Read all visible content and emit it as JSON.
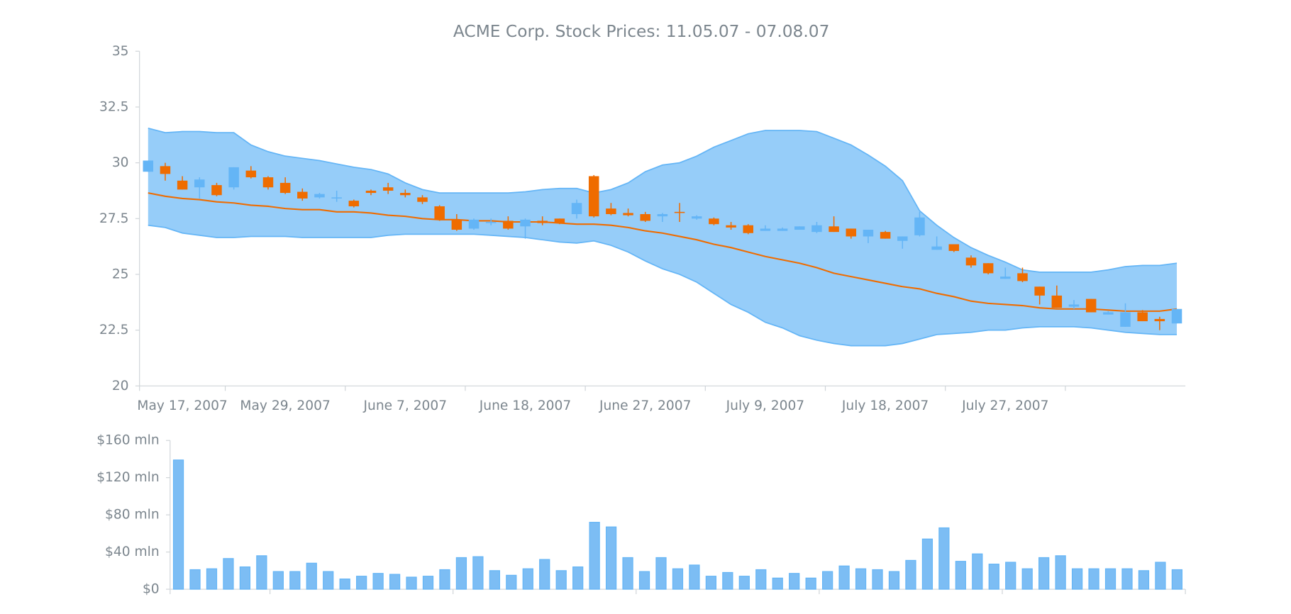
{
  "chart_data": [
    {
      "type": "candlestick",
      "title": "ACME Corp. Stock Prices: 11.05.07 - 07.08.07",
      "open": [
        29.6,
        29.85,
        29.2,
        28.9,
        29.0,
        28.9,
        29.65,
        29.35,
        29.1,
        28.7,
        28.45,
        28.4,
        28.3,
        28.75,
        28.9,
        28.65,
        28.45,
        28.05,
        27.45,
        27.05,
        27.3,
        27.4,
        27.15,
        27.4,
        27.5,
        27.7,
        29.4,
        27.95,
        27.75,
        27.7,
        27.6,
        27.8,
        27.5,
        27.5,
        27.2,
        27.2,
        26.95,
        26.95,
        27.0,
        26.9,
        27.15,
        27.05,
        26.7,
        26.9,
        26.5,
        26.75,
        26.1,
        26.35,
        25.75,
        25.5,
        24.8,
        25.05,
        24.45,
        24.05,
        23.55,
        23.9,
        23.2,
        22.65,
        23.3,
        23.0,
        22.8
      ],
      "high": [
        30.1,
        30.0,
        29.4,
        29.35,
        29.1,
        29.8,
        29.85,
        29.4,
        29.35,
        28.85,
        28.65,
        28.75,
        28.35,
        28.8,
        29.1,
        28.8,
        28.55,
        28.1,
        27.7,
        27.5,
        27.5,
        27.6,
        27.5,
        27.6,
        27.5,
        28.35,
        29.45,
        28.2,
        27.95,
        27.8,
        27.75,
        28.2,
        27.65,
        27.55,
        27.35,
        27.25,
        27.2,
        27.1,
        27.15,
        27.35,
        27.6,
        27.05,
        27.0,
        26.95,
        26.7,
        27.8,
        26.7,
        26.35,
        25.85,
        25.5,
        25.3,
        25.3,
        24.45,
        24.5,
        23.85,
        23.9,
        23.35,
        23.7,
        23.4,
        23.1,
        23.45
      ],
      "low": [
        29.6,
        29.2,
        28.8,
        28.4,
        28.5,
        28.8,
        29.3,
        28.8,
        28.6,
        28.3,
        28.4,
        28.25,
        28.0,
        28.55,
        28.6,
        28.45,
        28.15,
        27.4,
        26.95,
        27.0,
        27.2,
        27.0,
        26.6,
        27.2,
        27.25,
        27.5,
        27.55,
        27.65,
        27.6,
        27.35,
        27.35,
        27.35,
        27.45,
        27.2,
        27.0,
        26.8,
        26.95,
        26.95,
        27.0,
        26.85,
        26.9,
        26.6,
        26.4,
        26.6,
        26.15,
        26.7,
        26.1,
        26.0,
        25.3,
        25.0,
        24.8,
        24.65,
        23.65,
        23.5,
        23.45,
        23.3,
        23.2,
        22.65,
        22.9,
        22.5,
        22.8
      ],
      "close": [
        30.1,
        29.5,
        28.8,
        29.25,
        28.55,
        29.8,
        29.35,
        28.9,
        28.65,
        28.4,
        28.6,
        28.45,
        28.05,
        28.65,
        28.75,
        28.55,
        28.25,
        27.45,
        27.0,
        27.45,
        27.35,
        27.05,
        27.45,
        27.3,
        27.3,
        28.2,
        27.6,
        27.7,
        27.65,
        27.4,
        27.7,
        27.75,
        27.6,
        27.25,
        27.1,
        26.85,
        27.05,
        27.05,
        27.15,
        27.2,
        26.9,
        26.7,
        27.0,
        26.6,
        26.7,
        27.55,
        26.25,
        26.05,
        25.4,
        25.05,
        24.9,
        24.7,
        24.05,
        23.5,
        23.65,
        23.3,
        23.3,
        23.3,
        22.9,
        22.9,
        23.45
      ],
      "upper_band": [
        31.55,
        31.35,
        31.4,
        31.4,
        31.35,
        31.35,
        30.8,
        30.5,
        30.3,
        30.2,
        30.1,
        29.95,
        29.8,
        29.7,
        29.5,
        29.1,
        28.8,
        28.65,
        28.65,
        28.65,
        28.65,
        28.65,
        28.7,
        28.8,
        28.85,
        28.85,
        28.65,
        28.8,
        29.1,
        29.6,
        29.9,
        30.0,
        30.3,
        30.7,
        31.0,
        31.3,
        31.45,
        31.45,
        31.45,
        31.4,
        31.1,
        30.8,
        30.35,
        29.85,
        29.2,
        27.85,
        27.2,
        26.65,
        26.2,
        25.85,
        25.55,
        25.2,
        25.1,
        25.1,
        25.1,
        25.1,
        25.2,
        25.35,
        25.4,
        25.4,
        25.5
      ],
      "middle_band": [
        28.65,
        28.5,
        28.4,
        28.35,
        28.25,
        28.2,
        28.1,
        28.05,
        27.95,
        27.9,
        27.9,
        27.8,
        27.8,
        27.75,
        27.65,
        27.6,
        27.5,
        27.45,
        27.45,
        27.4,
        27.4,
        27.35,
        27.35,
        27.35,
        27.3,
        27.25,
        27.25,
        27.2,
        27.1,
        26.95,
        26.85,
        26.7,
        26.55,
        26.35,
        26.2,
        26.0,
        25.8,
        25.65,
        25.5,
        25.3,
        25.05,
        24.9,
        24.75,
        24.6,
        24.45,
        24.35,
        24.15,
        24.0,
        23.8,
        23.7,
        23.65,
        23.6,
        23.5,
        23.45,
        23.45,
        23.45,
        23.4,
        23.35,
        23.35,
        23.35,
        23.45
      ],
      "lower_band": [
        27.2,
        27.1,
        26.85,
        26.75,
        26.65,
        26.65,
        26.7,
        26.7,
        26.7,
        26.65,
        26.65,
        26.65,
        26.65,
        26.65,
        26.75,
        26.8,
        26.8,
        26.8,
        26.8,
        26.8,
        26.75,
        26.7,
        26.65,
        26.55,
        26.45,
        26.4,
        26.5,
        26.3,
        26.0,
        25.6,
        25.25,
        25.0,
        24.65,
        24.15,
        23.65,
        23.3,
        22.85,
        22.6,
        22.25,
        22.05,
        21.9,
        21.8,
        21.8,
        21.8,
        21.9,
        22.1,
        22.3,
        22.35,
        22.4,
        22.5,
        22.5,
        22.6,
        22.65,
        22.65,
        22.65,
        22.6,
        22.5,
        22.4,
        22.35,
        22.3,
        22.3
      ],
      "rising_color": "#64b5f6",
      "falling_color": "#ef6c00",
      "band_color": "#90caf9",
      "band_line_color": "#64b5f6",
      "middle_color": "#ef6c00",
      "xlim": [
        0,
        61
      ],
      "xticks": [
        {
          "value": 0,
          "label": "May 17, 2007"
        },
        {
          "value": 5,
          "label": "May 29, 2007"
        },
        {
          "value": 12,
          "label": "June 7, 2007"
        },
        {
          "value": 19,
          "label": "June 18, 2007"
        },
        {
          "value": 26,
          "label": "June 27, 2007"
        },
        {
          "value": 33,
          "label": "July 9, 2007"
        },
        {
          "value": 40,
          "label": "July 18, 2007"
        },
        {
          "value": 47,
          "label": "July 27, 2007"
        },
        {
          "value": 54,
          "label": null
        }
      ],
      "ylim": [
        20,
        35
      ],
      "yticks": [
        20,
        22.5,
        25,
        27.5,
        30,
        32.5,
        35
      ]
    },
    {
      "type": "bar",
      "values": [
        139,
        21,
        22,
        33,
        24,
        36,
        19,
        19,
        28,
        19,
        11,
        14,
        17,
        16,
        13,
        14,
        21,
        34,
        35,
        20,
        15,
        22,
        32,
        20,
        24,
        72,
        67,
        34,
        19,
        34,
        22,
        26,
        14,
        18,
        14,
        21,
        12,
        17,
        12,
        19,
        25,
        22,
        21,
        19,
        31,
        54,
        66,
        30,
        38,
        27,
        29,
        22,
        34,
        36,
        22,
        22,
        22,
        22,
        20,
        29,
        21
      ],
      "color": "#7cbdf4",
      "edge_color": "#64b5f6",
      "xlim": [
        0,
        61
      ],
      "xticks": [
        {
          "value": 0,
          "label": null
        },
        {
          "value": 6,
          "label": null
        },
        {
          "value": 17,
          "label": null
        },
        {
          "value": 28,
          "label": null
        },
        {
          "value": 39,
          "label": null
        },
        {
          "value": 50,
          "label": null
        },
        {
          "value": 61,
          "label": null
        }
      ],
      "ylim": [
        0,
        160
      ],
      "yticks": [
        {
          "value": 0,
          "label": "$0"
        },
        {
          "value": 40,
          "label": "$40 mln"
        },
        {
          "value": 80,
          "label": "$80 mln"
        },
        {
          "value": 120,
          "label": "$120 mln"
        },
        {
          "value": 160,
          "label": "$160 mln"
        }
      ]
    }
  ]
}
